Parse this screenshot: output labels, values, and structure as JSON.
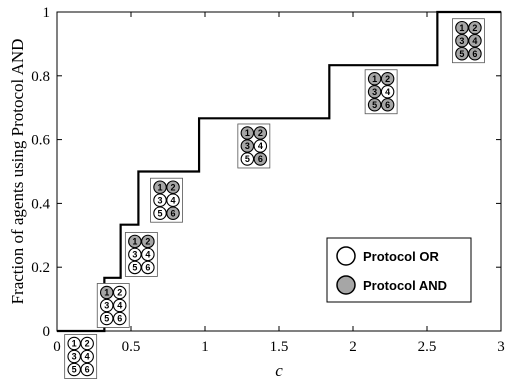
{
  "chart_data": {
    "type": "line",
    "xlabel": "c",
    "ylabel": "Fraction of agents using Protocol AND",
    "xlim": [
      0,
      3
    ],
    "ylim": [
      0,
      1
    ],
    "xticks": [
      "0",
      "0.5",
      "1",
      "1.5",
      "2",
      "2.5",
      "3"
    ],
    "yticks": [
      "0",
      "0.2",
      "0.4",
      "0.6",
      "0.8",
      "1"
    ],
    "xtick_values": [
      0,
      0.5,
      1,
      1.5,
      2,
      2.5,
      3
    ],
    "ytick_values": [
      0,
      0.2,
      0.4,
      0.6,
      0.8,
      1
    ],
    "grid": false,
    "line_style": "step",
    "series": [
      {
        "x": [
          0,
          0.32,
          0.32,
          0.43,
          0.43,
          0.55,
          0.55,
          0.96,
          0.96,
          1.84,
          1.84,
          2.57,
          2.57,
          3
        ],
        "y": [
          0,
          0,
          0.1667,
          0.1667,
          0.3333,
          0.3333,
          0.5,
          0.5,
          0.6667,
          0.6667,
          0.8333,
          0.8333,
          1,
          1
        ]
      }
    ],
    "configurations": [
      {
        "x": 0.16,
        "y": -0.08,
        "and_agents": []
      },
      {
        "x": 0.38,
        "y": 0.08,
        "and_agents": [
          1
        ]
      },
      {
        "x": 0.57,
        "y": 0.24,
        "and_agents": [
          1,
          2
        ]
      },
      {
        "x": 0.74,
        "y": 0.41,
        "and_agents": [
          1,
          2,
          6
        ]
      },
      {
        "x": 1.33,
        "y": 0.58,
        "and_agents": [
          1,
          2,
          3,
          6
        ]
      },
      {
        "x": 2.19,
        "y": 0.75,
        "and_agents": [
          1,
          2,
          3,
          5,
          6
        ]
      },
      {
        "x": 2.78,
        "y": 0.91,
        "and_agents": [
          1,
          2,
          3,
          4,
          5,
          6
        ]
      }
    ],
    "agent_numbers": [
      "1",
      "2",
      "3",
      "4",
      "5",
      "6"
    ],
    "legend": {
      "position": "bottom-right",
      "entries": [
        {
          "label": "Protocol OR",
          "fill": "#ffffff"
        },
        {
          "label": "Protocol AND",
          "fill": "#a6a6a6"
        }
      ]
    },
    "colors": {
      "line": "#000000",
      "or_fill": "#ffffff",
      "and_fill": "#a6a6a6"
    }
  }
}
